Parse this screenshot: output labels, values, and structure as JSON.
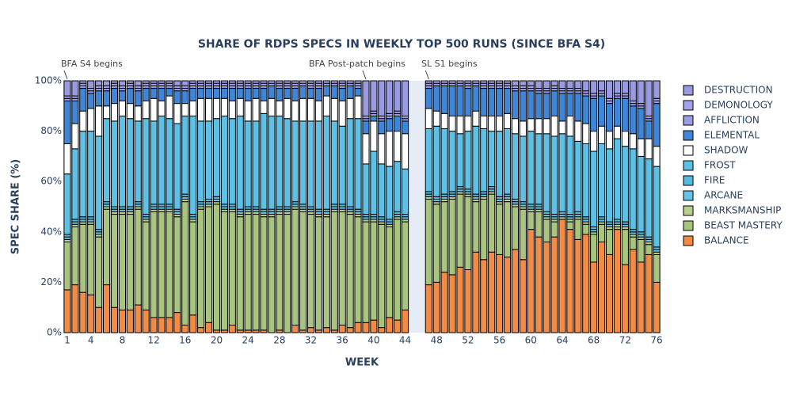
{
  "chart_data": {
    "type": "stacked_bar",
    "title": "SHARE OF RDPS SPECS IN WEEKLY TOP 500 RUNS (SINCE BFA S4)",
    "xlabel": "WEEK",
    "ylabel": "SPEC SHARE (%)",
    "annotations": [
      {
        "text": "BFA S4 begins",
        "x": 1
      },
      {
        "text": "BFA Post-patch begins",
        "x": 39
      },
      {
        "text": "SL S1 begins",
        "x": 47
      }
    ],
    "x": [
      1,
      2,
      3,
      4,
      5,
      6,
      7,
      8,
      9,
      10,
      11,
      12,
      13,
      14,
      15,
      16,
      17,
      18,
      19,
      20,
      21,
      22,
      23,
      24,
      25,
      26,
      27,
      28,
      29,
      30,
      31,
      32,
      33,
      34,
      35,
      36,
      37,
      38,
      39,
      40,
      41,
      42,
      43,
      44,
      47,
      48,
      49,
      50,
      51,
      52,
      53,
      54,
      55,
      56,
      57,
      58,
      59,
      60,
      61,
      62,
      63,
      64,
      65,
      66,
      67,
      68,
      69,
      70,
      71,
      72,
      73,
      74,
      75,
      76
    ],
    "xlim": [
      0.5,
      76.5
    ],
    "xticks": [
      1,
      4,
      8,
      12,
      16,
      20,
      24,
      28,
      32,
      36,
      40,
      44,
      48,
      52,
      56,
      60,
      64,
      68,
      72,
      76
    ],
    "ylim": [
      0,
      100
    ],
    "yticks": [
      {
        "value": 0,
        "label": "0%"
      },
      {
        "value": 20,
        "label": "20%"
      },
      {
        "value": 40,
        "label": "40%"
      },
      {
        "value": 60,
        "label": "60%"
      },
      {
        "value": 80,
        "label": "80%"
      },
      {
        "value": 100,
        "label": "100%"
      }
    ],
    "series": [
      {
        "name": "BALANCE",
        "color": "#f28b45",
        "values": [
          17,
          19,
          16,
          15,
          10,
          19,
          10,
          9,
          9,
          11,
          9,
          6,
          6,
          6,
          8,
          3,
          7,
          2,
          4,
          1,
          1,
          3,
          1,
          1,
          1,
          1,
          0,
          1,
          0,
          3,
          1,
          2,
          1,
          2,
          1,
          3,
          2,
          4,
          4,
          5,
          2,
          6,
          5,
          9,
          19,
          20,
          24,
          23,
          26,
          25,
          32,
          29,
          32,
          31,
          30,
          33,
          29,
          41,
          38,
          36,
          38,
          45,
          41,
          37,
          39,
          28,
          36,
          31,
          41,
          27,
          33,
          28,
          31,
          20
        ]
      },
      {
        "name": "BEAST MASTERY",
        "color": "#a9c47f",
        "values": [
          19,
          23,
          27,
          28,
          28,
          30,
          37,
          38,
          38,
          38,
          35,
          42,
          42,
          42,
          38,
          49,
          37,
          47,
          46,
          50,
          47,
          45,
          45,
          46,
          46,
          45,
          46,
          46,
          47,
          46,
          47,
          45,
          45,
          44,
          47,
          45,
          45,
          42,
          40,
          39,
          41,
          36,
          40,
          35,
          34,
          31,
          28,
          30,
          29,
          29,
          20,
          24,
          23,
          20,
          22,
          17,
          20,
          7,
          10,
          9,
          6,
          0,
          3,
          8,
          4,
          11,
          7,
          10,
          1,
          14,
          5,
          9,
          4,
          11
        ]
      },
      {
        "name": "MARKSMANSHIP",
        "color": "#b7d08c",
        "values": [
          1,
          1,
          1,
          1,
          1,
          1,
          1,
          1,
          1,
          1,
          1,
          1,
          1,
          1,
          1,
          1,
          1,
          1,
          1,
          1,
          1,
          1,
          1,
          1,
          1,
          1,
          1,
          1,
          1,
          1,
          1,
          1,
          1,
          1,
          1,
          1,
          1,
          1,
          1,
          1,
          1,
          1,
          1,
          1,
          1,
          1,
          1,
          1,
          1,
          1,
          1,
          1,
          1,
          1,
          1,
          1,
          1,
          1,
          1,
          1,
          1,
          1,
          1,
          1,
          1,
          1,
          1,
          1,
          1,
          1,
          1,
          1,
          1,
          1
        ]
      },
      {
        "name": "ARCANE",
        "color": "#63c4e6",
        "values": [
          1,
          1,
          1,
          1,
          1,
          1,
          1,
          1,
          1,
          1,
          1,
          1,
          1,
          1,
          1,
          1,
          1,
          1,
          1,
          1,
          1,
          1,
          1,
          1,
          1,
          1,
          1,
          1,
          1,
          1,
          1,
          1,
          1,
          1,
          1,
          1,
          1,
          1,
          1,
          1,
          1,
          1,
          1,
          1,
          1,
          1,
          1,
          1,
          1,
          1,
          1,
          1,
          1,
          1,
          1,
          1,
          1,
          1,
          1,
          1,
          1,
          1,
          1,
          1,
          1,
          1,
          1,
          1,
          1,
          1,
          1,
          1,
          1,
          1
        ]
      },
      {
        "name": "FIRE",
        "color": "#56bade",
        "values": [
          1,
          1,
          1,
          1,
          1,
          1,
          1,
          1,
          1,
          1,
          1,
          1,
          1,
          1,
          1,
          1,
          1,
          1,
          1,
          1,
          1,
          1,
          1,
          1,
          1,
          1,
          1,
          1,
          1,
          1,
          1,
          1,
          1,
          1,
          1,
          1,
          1,
          1,
          1,
          1,
          1,
          1,
          1,
          1,
          1,
          1,
          1,
          1,
          1,
          1,
          1,
          1,
          1,
          1,
          1,
          1,
          1,
          1,
          1,
          1,
          1,
          1,
          1,
          1,
          1,
          1,
          1,
          1,
          1,
          1,
          1,
          1,
          1,
          1
        ]
      },
      {
        "name": "FROST",
        "color": "#5dc0e4",
        "values": [
          24,
          28,
          34,
          34,
          37,
          33,
          34,
          36,
          35,
          32,
          38,
          33,
          35,
          34,
          34,
          31,
          39,
          32,
          31,
          31,
          35,
          34,
          37,
          34,
          34,
          38,
          37,
          36,
          35,
          32,
          33,
          34,
          35,
          37,
          33,
          31,
          35,
          36,
          20,
          25,
          21,
          21,
          20,
          18,
          25,
          28,
          26,
          24,
          21,
          23,
          27,
          25,
          22,
          26,
          26,
          26,
          26,
          29,
          28,
          31,
          31,
          31,
          31,
          28,
          29,
          30,
          29,
          29,
          32,
          30,
          32,
          30,
          31,
          32
        ]
      },
      {
        "name": "SHADOW",
        "color": "#ffffff",
        "values": [
          12,
          10,
          8,
          9,
          12,
          5,
          7,
          6,
          6,
          6,
          7,
          9,
          6,
          9,
          8,
          5,
          6,
          9,
          9,
          8,
          7,
          7,
          7,
          8,
          9,
          5,
          7,
          6,
          8,
          8,
          9,
          9,
          8,
          8,
          9,
          10,
          8,
          9,
          12,
          12,
          12,
          14,
          12,
          14,
          8,
          6,
          6,
          6,
          7,
          6,
          6,
          5,
          6,
          6,
          6,
          6,
          6,
          5,
          6,
          6,
          8,
          5,
          8,
          8,
          8,
          8,
          7,
          7,
          5,
          6,
          6,
          7,
          8,
          8
        ]
      },
      {
        "name": "ELEMENTAL",
        "color": "#3f86d8",
        "values": [
          17,
          9,
          9,
          6,
          6,
          6,
          6,
          4,
          6,
          6,
          5,
          4,
          5,
          3,
          5,
          5,
          5,
          4,
          4,
          4,
          4,
          5,
          4,
          5,
          4,
          5,
          5,
          5,
          4,
          5,
          5,
          4,
          5,
          4,
          5,
          5,
          5,
          3,
          5,
          2,
          5,
          5,
          6,
          5,
          8,
          10,
          11,
          12,
          12,
          11,
          10,
          11,
          11,
          11,
          10,
          11,
          12,
          11,
          10,
          10,
          10,
          11,
          9,
          11,
          11,
          13,
          12,
          11,
          11,
          13,
          11,
          12,
          7,
          17
        ]
      },
      {
        "name": "AFFLICTION",
        "color": "#9d9de6",
        "values": [
          1,
          1,
          1,
          1,
          1,
          1,
          1,
          1,
          1,
          1,
          1,
          1,
          1,
          1,
          1,
          1,
          1,
          1,
          1,
          1,
          1,
          1,
          1,
          1,
          1,
          1,
          1,
          1,
          1,
          1,
          1,
          1,
          1,
          1,
          1,
          1,
          1,
          1,
          1,
          1,
          1,
          1,
          1,
          1,
          1,
          1,
          1,
          1,
          1,
          1,
          1,
          1,
          1,
          1,
          1,
          1,
          1,
          1,
          1,
          1,
          1,
          1,
          1,
          1,
          1,
          1,
          1,
          1,
          1,
          1,
          1,
          1,
          1,
          1
        ]
      },
      {
        "name": "DEMONOLOGY",
        "color": "#a3a3ea",
        "values": [
          1,
          1,
          1,
          1,
          1,
          1,
          1,
          1,
          1,
          1,
          1,
          1,
          1,
          1,
          1,
          1,
          1,
          1,
          1,
          1,
          1,
          1,
          1,
          1,
          1,
          1,
          1,
          1,
          1,
          1,
          1,
          1,
          1,
          1,
          1,
          1,
          1,
          1,
          1,
          1,
          1,
          1,
          1,
          1,
          1,
          1,
          1,
          1,
          1,
          1,
          1,
          1,
          1,
          1,
          1,
          1,
          1,
          1,
          1,
          1,
          1,
          1,
          1,
          1,
          1,
          1,
          1,
          1,
          1,
          1,
          1,
          1,
          1,
          1
        ]
      },
      {
        "name": "DESTRUCTION",
        "color": "#9a9ae2",
        "values": [
          6,
          6,
          1,
          3,
          2,
          2,
          1,
          2,
          1,
          2,
          1,
          1,
          1,
          1,
          2,
          2,
          1,
          1,
          1,
          1,
          1,
          1,
          1,
          1,
          1,
          1,
          0,
          1,
          1,
          1,
          0,
          1,
          1,
          0,
          0,
          1,
          0,
          1,
          14,
          12,
          14,
          13,
          12,
          14,
          1,
          0,
          0,
          0,
          0,
          1,
          0,
          1,
          1,
          1,
          1,
          2,
          2,
          2,
          3,
          3,
          2,
          3,
          3,
          3,
          4,
          5,
          4,
          7,
          5,
          5,
          8,
          9,
          14,
          7
        ]
      }
    ],
    "legend": "right"
  }
}
